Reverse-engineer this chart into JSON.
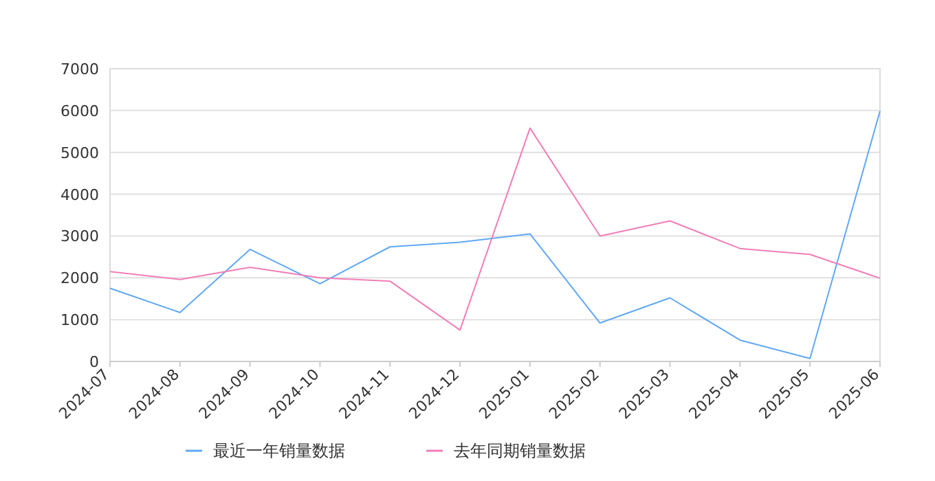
{
  "chart_data": {
    "type": "line",
    "categories": [
      "2024-07",
      "2024-08",
      "2024-09",
      "2024-10",
      "2024-11",
      "2024-12",
      "2025-01",
      "2025-02",
      "2025-03",
      "2025-04",
      "2025-05",
      "2025-06"
    ],
    "series": [
      {
        "name": "最近一年销量数据",
        "color": "#5fa8f5",
        "values": [
          1750,
          1170,
          2680,
          1860,
          2740,
          2850,
          3050,
          920,
          1520,
          510,
          70,
          5990
        ]
      },
      {
        "name": "去年同期销量数据",
        "color": "#f27eb7",
        "values": [
          2150,
          1960,
          2250,
          2000,
          1920,
          750,
          5580,
          3000,
          3360,
          2700,
          2560,
          1990
        ]
      }
    ],
    "ylim": [
      0,
      7000
    ],
    "yticks": [
      0,
      1000,
      2000,
      3000,
      4000,
      5000,
      6000,
      7000
    ],
    "grid": "y",
    "legend": "bottom",
    "marker": "none",
    "line_style": "solid"
  }
}
